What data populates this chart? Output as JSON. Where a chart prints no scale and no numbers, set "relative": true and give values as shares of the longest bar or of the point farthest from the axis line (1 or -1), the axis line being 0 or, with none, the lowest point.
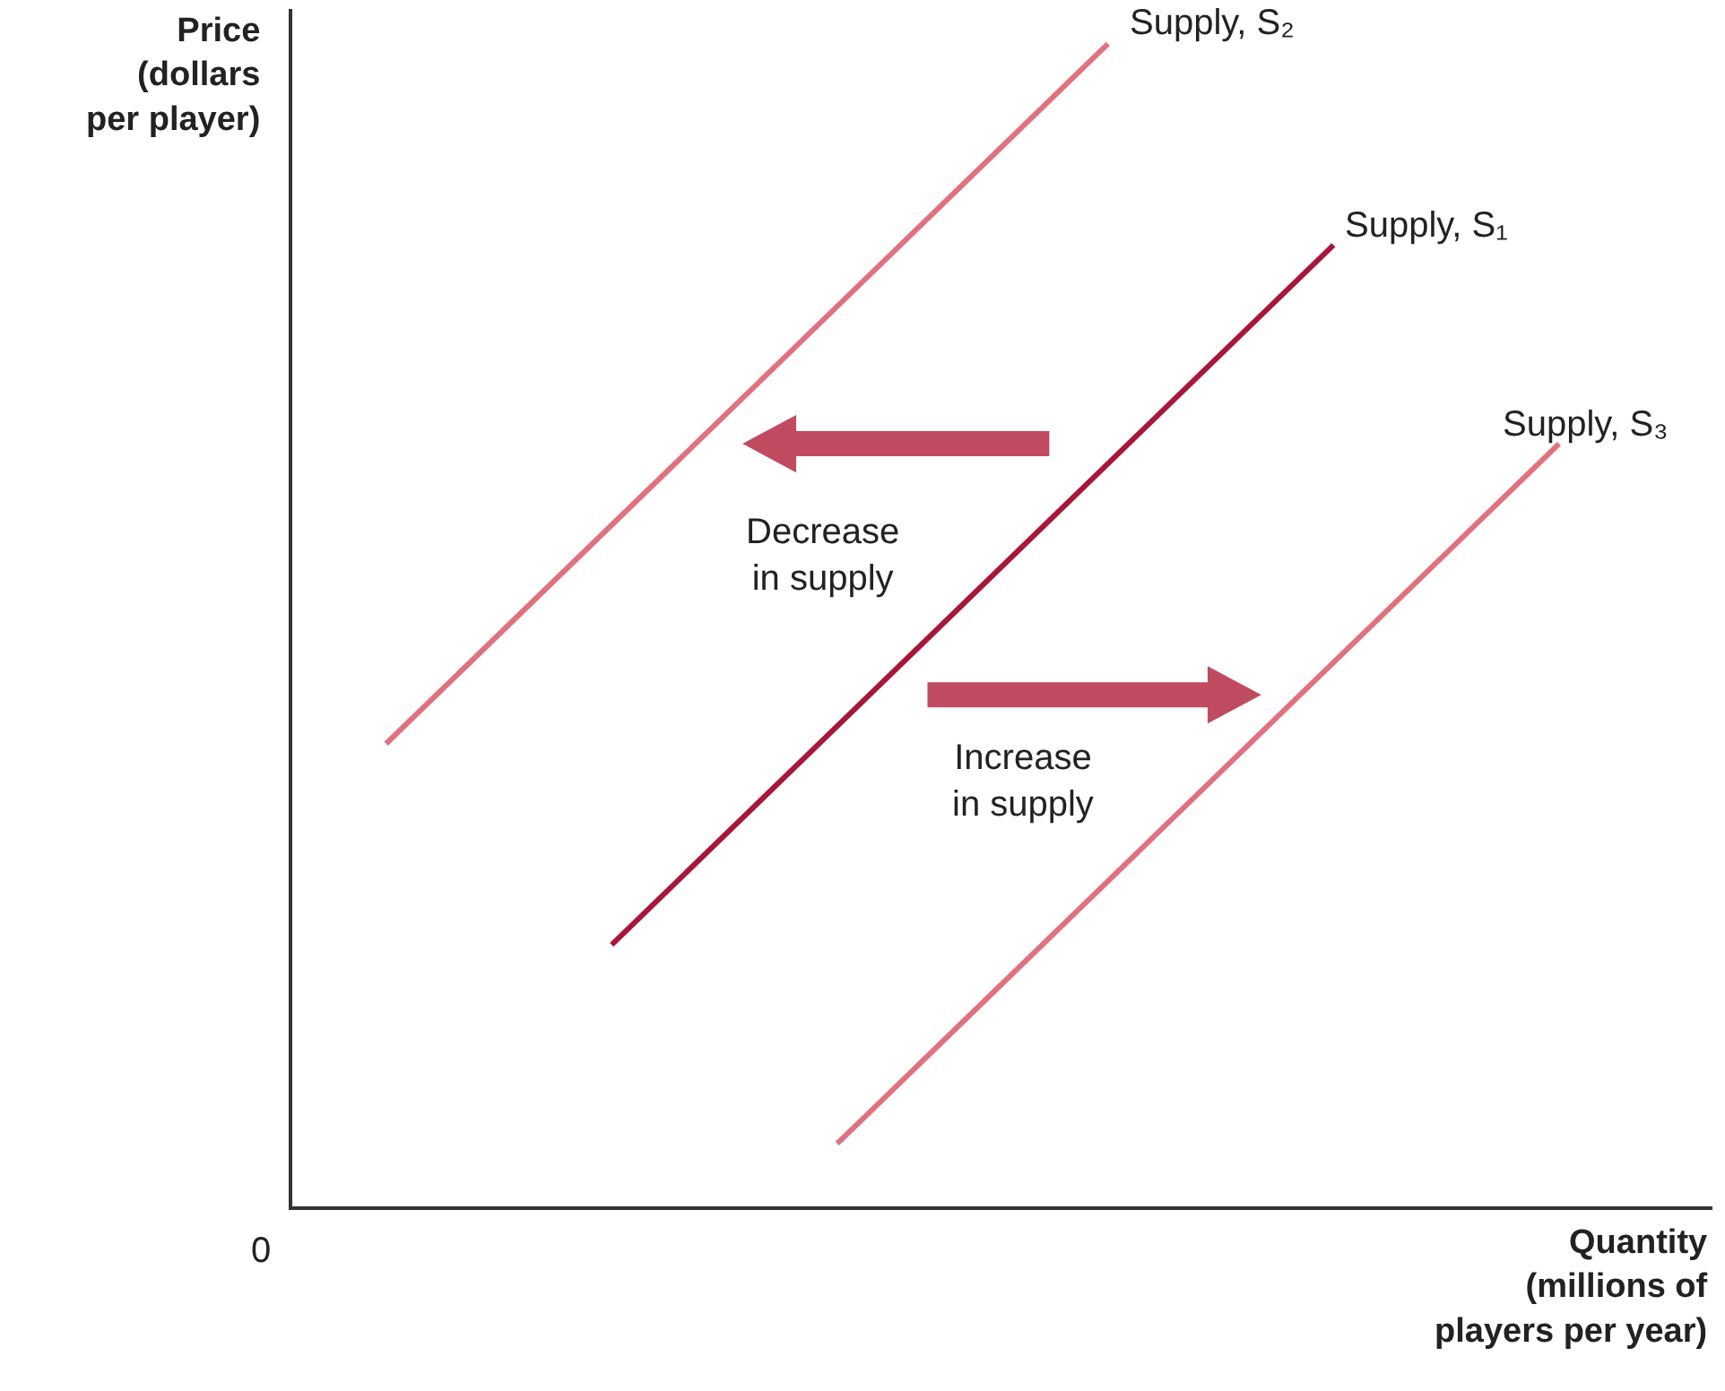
{
  "chart_data": {
    "type": "line",
    "relative": true,
    "xlabel": "Quantity (millions of players per year)",
    "ylabel": "Price (dollars per player)",
    "legend": false,
    "marker": "none",
    "line_style": "solid",
    "categories": [
      null,
      null,
      null,
      null,
      null,
      null,
      null,
      null,
      null,
      null,
      null,
      null,
      null,
      null,
      null,
      null,
      null,
      null,
      null,
      null,
      null,
      null,
      null,
      null,
      null,
      null,
      null
    ],
    "series": [
      {
        "name": "Supply, S₂",
        "color": "#e0717f",
        "values": [
          0.398,
          null,
          null,
          null,
          null,
          null,
          null,
          null,
          null,
          null,
          null,
          null,
          null,
          null,
          null,
          null,
          1,
          null,
          null,
          null,
          null,
          null,
          null,
          null,
          null,
          null,
          null
        ]
      },
      {
        "name": "Supply, S₁",
        "color": "#a8163a",
        "values": [
          null,
          null,
          null,
          null,
          null,
          0.225,
          null,
          null,
          null,
          null,
          null,
          null,
          null,
          null,
          null,
          null,
          null,
          null,
          null,
          null,
          null,
          0.827,
          null,
          null,
          null,
          null,
          null
        ]
      },
      {
        "name": "Supply, S₃",
        "color": "#e0717f",
        "values": [
          null,
          null,
          null,
          null,
          null,
          null,
          null,
          null,
          null,
          null,
          0.054,
          null,
          null,
          null,
          null,
          null,
          null,
          null,
          null,
          null,
          null,
          null,
          null,
          null,
          null,
          null,
          0.656
        ]
      }
    ],
    "annotations": [
      "Decrease in supply",
      "Increase in supply",
      "0"
    ]
  }
}
